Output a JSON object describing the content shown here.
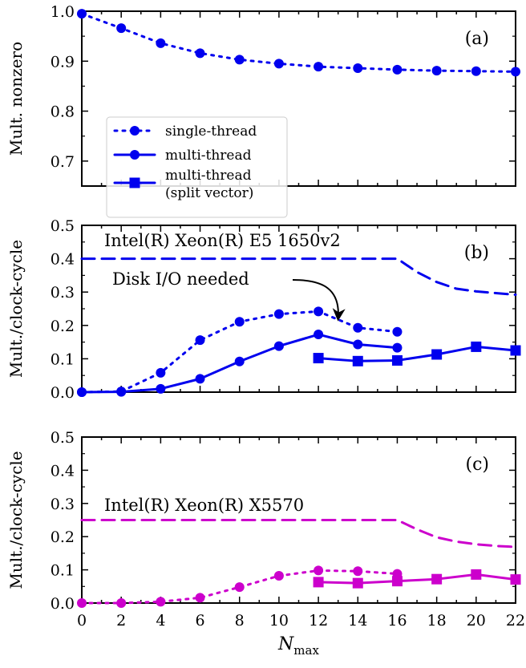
{
  "chart_data": [
    {
      "type": "line",
      "panel_label": "(a)",
      "ylabel": "Mult. nonzero",
      "xlim": [
        0,
        22
      ],
      "ylim": [
        0.65,
        1.0
      ],
      "yticks": [
        0.7,
        0.8,
        0.9,
        1.0
      ],
      "ytick_labels": [
        "0.7",
        "0.8",
        "0.9",
        "1.0"
      ],
      "grid": false,
      "series": [
        {
          "name": "single-thread",
          "style": "dotted",
          "marker": "circle",
          "color": "#0000ee",
          "x": [
            0,
            2,
            4,
            6,
            8,
            10,
            12,
            14,
            16,
            18,
            20,
            22
          ],
          "y": [
            0.995,
            0.966,
            0.936,
            0.916,
            0.903,
            0.895,
            0.889,
            0.886,
            0.883,
            0.881,
            0.88,
            0.879
          ]
        }
      ],
      "legend": {
        "placement": "lower-left",
        "entries": [
          {
            "lines": [
              "single-thread"
            ],
            "style": "dotted",
            "marker": "circle",
            "color": "#0000ee"
          },
          {
            "lines": [
              "multi-thread"
            ],
            "style": "solid",
            "marker": "circle",
            "color": "#0000ee"
          },
          {
            "lines": [
              "multi-thread",
              "(split vector)"
            ],
            "style": "solid",
            "marker": "square",
            "color": "#0000ee"
          }
        ]
      }
    },
    {
      "type": "line",
      "panel_label": "(b)",
      "ylabel": "Mult./clock-cycle",
      "xlim": [
        0,
        22
      ],
      "ylim": [
        0,
        0.5
      ],
      "yticks": [
        0.0,
        0.1,
        0.2,
        0.3,
        0.4,
        0.5
      ],
      "ytick_labels": [
        "0.0",
        "0.1",
        "0.2",
        "0.3",
        "0.4",
        "0.5"
      ],
      "grid": false,
      "annotations": [
        {
          "text": "Intel(R) Xeon(R) E5 1650v2"
        },
        {
          "text": "Disk I/O needed",
          "points_to": [
            13,
            0.22
          ]
        }
      ],
      "series": [
        {
          "name": "",
          "style": "dashed",
          "marker": "none",
          "color": "#0000ee",
          "x": [
            0,
            16,
            17,
            18,
            19,
            20,
            21,
            22
          ],
          "y": [
            0.4,
            0.4,
            0.36,
            0.33,
            0.31,
            0.302,
            0.297,
            0.292
          ]
        },
        {
          "name": "single-thread",
          "style": "dotted",
          "marker": "circle",
          "color": "#0000ee",
          "x": [
            0,
            2,
            4,
            6,
            8,
            10,
            12,
            14,
            16
          ],
          "y": [
            0.0,
            0.002,
            0.058,
            0.156,
            0.211,
            0.234,
            0.242,
            0.193,
            0.181
          ]
        },
        {
          "name": "multi-thread",
          "style": "solid",
          "marker": "circle",
          "color": "#0000ee",
          "x": [
            0,
            2,
            4,
            6,
            8,
            10,
            12,
            14,
            16
          ],
          "y": [
            0.0,
            0.001,
            0.01,
            0.04,
            0.092,
            0.138,
            0.173,
            0.143,
            0.133
          ]
        },
        {
          "name": "multi-thread (split vector)",
          "style": "solid",
          "marker": "square",
          "color": "#0000ee",
          "x": [
            12,
            14,
            16,
            18,
            20,
            22
          ],
          "y": [
            0.102,
            0.093,
            0.095,
            0.113,
            0.136,
            0.125
          ]
        }
      ]
    },
    {
      "type": "line",
      "panel_label": "(c)",
      "ylabel": "Mult./clock-cycle",
      "xlabel_main": "N",
      "xlabel_sub": "max",
      "xlim": [
        0,
        22
      ],
      "ylim": [
        0,
        0.5
      ],
      "xticks": [
        0,
        2,
        4,
        6,
        8,
        10,
        12,
        14,
        16,
        18,
        20,
        22
      ],
      "xtick_labels": [
        "0",
        "2",
        "4",
        "6",
        "8",
        "10",
        "12",
        "14",
        "16",
        "18",
        "20",
        "22"
      ],
      "yticks": [
        0.0,
        0.1,
        0.2,
        0.3,
        0.4,
        0.5
      ],
      "ytick_labels": [
        "0.0",
        "0.1",
        "0.2",
        "0.3",
        "0.4",
        "0.5"
      ],
      "grid": false,
      "annotations": [
        {
          "text": "Intel(R) Xeon(R) X5570"
        }
      ],
      "series": [
        {
          "name": "",
          "style": "dashed",
          "marker": "none",
          "color": "#cc00cc",
          "x": [
            0,
            16,
            17,
            18,
            19,
            20,
            21,
            22
          ],
          "y": [
            0.25,
            0.25,
            0.222,
            0.198,
            0.185,
            0.177,
            0.172,
            0.169
          ]
        },
        {
          "name": "single-thread",
          "style": "dotted",
          "marker": "circle",
          "color": "#cc00cc",
          "x": [
            0,
            2,
            4,
            6,
            8,
            10,
            12,
            14,
            16
          ],
          "y": [
            0.0,
            0.0,
            0.004,
            0.016,
            0.048,
            0.082,
            0.098,
            0.096,
            0.088
          ]
        },
        {
          "name": "multi-thread (split vector)",
          "style": "solid",
          "marker": "square",
          "color": "#cc00cc",
          "x": [
            12,
            14,
            16,
            18,
            20,
            22
          ],
          "y": [
            0.063,
            0.06,
            0.066,
            0.072,
            0.086,
            0.071
          ]
        }
      ]
    }
  ]
}
